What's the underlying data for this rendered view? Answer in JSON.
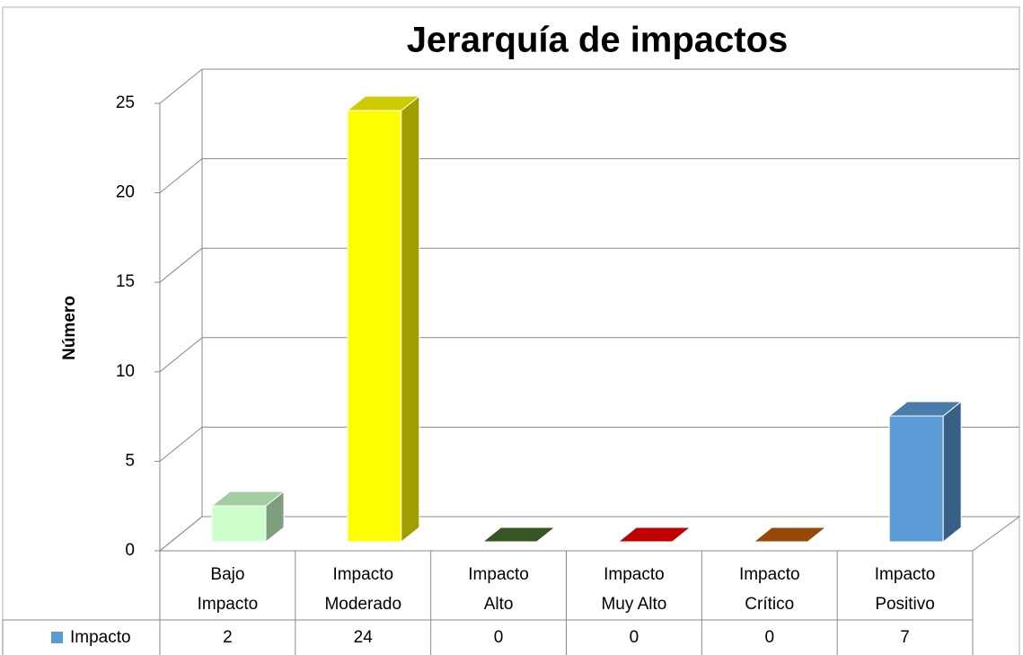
{
  "chart_data": {
    "type": "bar3d",
    "title": "Jerarquía de impactos",
    "y_label": "Número",
    "categories": [
      "Bajo Impacto",
      "Impacto Moderado",
      "Impacto Alto",
      "Impacto Muy Alto",
      "Impacto Crítico",
      "Impacto Positivo"
    ],
    "series": [
      {
        "name": "Impacto",
        "color": "#5b9bd5",
        "values": [
          2,
          24,
          0,
          0,
          0,
          7
        ]
      }
    ],
    "bar_colors": [
      "#ccffcc",
      "#ffff00",
      "#375623",
      "#c00000",
      "#974706",
      "#5b9bd5"
    ],
    "ylim": [
      0,
      25
    ],
    "yticks": [
      0,
      5,
      10,
      15,
      20,
      25
    ],
    "grid": true,
    "data_table": true
  }
}
